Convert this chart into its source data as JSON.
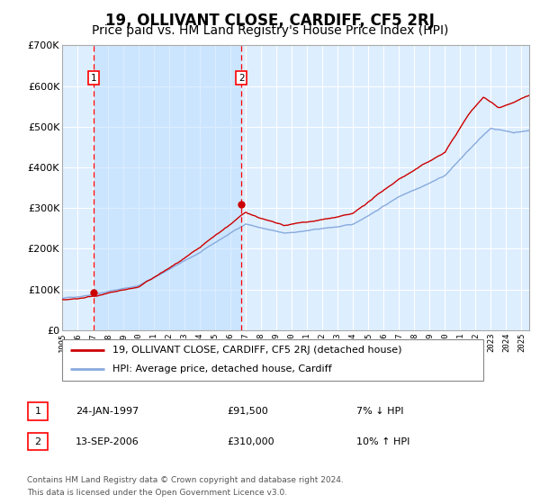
{
  "title": "19, OLLIVANT CLOSE, CARDIFF, CF5 2RJ",
  "subtitle": "Price paid vs. HM Land Registry's House Price Index (HPI)",
  "title_fontsize": 12,
  "subtitle_fontsize": 10,
  "ylim": [
    0,
    700000
  ],
  "xlim_start": 1995.0,
  "xlim_end": 2025.5,
  "yticks": [
    0,
    100000,
    200000,
    300000,
    400000,
    500000,
    600000,
    700000
  ],
  "ytick_labels": [
    "£0",
    "£100K",
    "£200K",
    "£300K",
    "£400K",
    "£500K",
    "£600K",
    "£700K"
  ],
  "xtick_years": [
    1995,
    1996,
    1997,
    1998,
    1999,
    2000,
    2001,
    2002,
    2003,
    2004,
    2005,
    2006,
    2007,
    2008,
    2009,
    2010,
    2011,
    2012,
    2013,
    2014,
    2015,
    2016,
    2017,
    2018,
    2019,
    2020,
    2021,
    2022,
    2023,
    2024,
    2025
  ],
  "property_line_color": "#cc0000",
  "hpi_line_color": "#88aadd",
  "plot_bg_color": "#ddeeff",
  "grid_color": "#ffffff",
  "shade_color": "#bbccee",
  "purchase1_year": 1997.07,
  "purchase1_price": 91500,
  "purchase2_year": 2006.71,
  "purchase2_price": 310000,
  "legend_label1": "19, OLLIVANT CLOSE, CARDIFF, CF5 2RJ (detached house)",
  "legend_label2": "HPI: Average price, detached house, Cardiff",
  "transaction1_label": "1",
  "transaction1_date": "24-JAN-1997",
  "transaction1_price": "£91,500",
  "transaction1_hpi": "7% ↓ HPI",
  "transaction2_label": "2",
  "transaction2_date": "13-SEP-2006",
  "transaction2_price": "£310,000",
  "transaction2_hpi": "10% ↑ HPI",
  "footer_line1": "Contains HM Land Registry data © Crown copyright and database right 2024.",
  "footer_line2": "This data is licensed under the Open Government Licence v3.0."
}
